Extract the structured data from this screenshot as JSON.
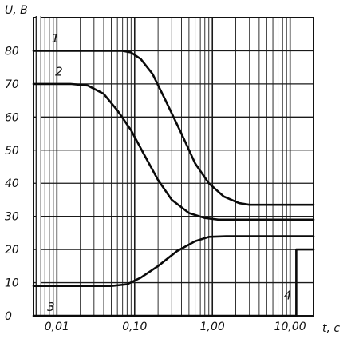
{
  "chart_data": {
    "type": "line",
    "title": "",
    "ylabel": "U, B",
    "xlabel": "t, c",
    "x_scale": "log",
    "xlim": [
      0.005,
      20
    ],
    "ylim": [
      0,
      90
    ],
    "grid": true,
    "x_ticks": [
      0.01,
      0.1,
      1,
      10
    ],
    "x_tick_labels": [
      "0,01",
      "0,10",
      "1,00",
      "10,00"
    ],
    "y_ticks": [
      0,
      10,
      20,
      30,
      40,
      50,
      60,
      70,
      80
    ],
    "y_tick_labels": [
      "0",
      "10",
      "20",
      "30",
      "40",
      "50",
      "60",
      "70",
      "80"
    ],
    "series": [
      {
        "label": "1",
        "points": [
          [
            0.005,
            80
          ],
          [
            0.03,
            80
          ],
          [
            0.07,
            80
          ],
          [
            0.09,
            79.5
          ],
          [
            0.12,
            77.5
          ],
          [
            0.17,
            73
          ],
          [
            0.25,
            65
          ],
          [
            0.4,
            55
          ],
          [
            0.6,
            46
          ],
          [
            0.9,
            40
          ],
          [
            1.4,
            36
          ],
          [
            2.2,
            34
          ],
          [
            3,
            33.5
          ],
          [
            20,
            33.5
          ]
        ]
      },
      {
        "label": "2",
        "points": [
          [
            0.005,
            70
          ],
          [
            0.015,
            70
          ],
          [
            0.025,
            69.5
          ],
          [
            0.04,
            67
          ],
          [
            0.06,
            62
          ],
          [
            0.09,
            56
          ],
          [
            0.13,
            49
          ],
          [
            0.2,
            41
          ],
          [
            0.3,
            35
          ],
          [
            0.5,
            31
          ],
          [
            0.8,
            29.5
          ],
          [
            1.2,
            29
          ],
          [
            20,
            29
          ]
        ]
      },
      {
        "label": "3",
        "points": [
          [
            0.005,
            9
          ],
          [
            0.05,
            9
          ],
          [
            0.08,
            9.5
          ],
          [
            0.12,
            11.5
          ],
          [
            0.2,
            15
          ],
          [
            0.35,
            19.5
          ],
          [
            0.6,
            22.5
          ],
          [
            0.9,
            23.8
          ],
          [
            1.5,
            24
          ],
          [
            20,
            24
          ]
        ]
      },
      {
        "label": "4",
        "points": [
          [
            0.005,
            0
          ],
          [
            12,
            0
          ],
          [
            12,
            20
          ],
          [
            20,
            20
          ]
        ]
      }
    ]
  }
}
